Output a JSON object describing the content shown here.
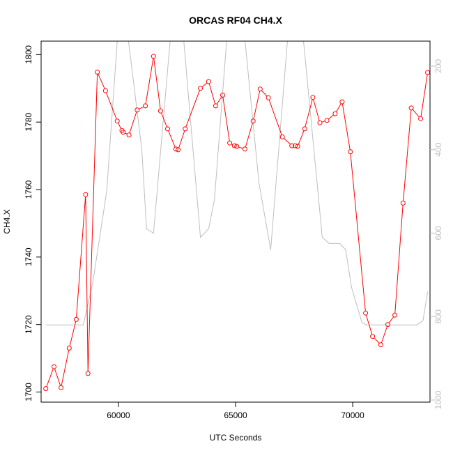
{
  "chart_data": {
    "type": "line",
    "title": "ORCAS RF04 CH4.X",
    "xlabel": "UTC Seconds",
    "ylabel": "CH4.X",
    "xlim": [
      56700,
      73300
    ],
    "ylim": [
      1697,
      1804
    ],
    "x_ticks": [
      60000,
      65000,
      70000
    ],
    "y_ticks": [
      1700,
      1720,
      1740,
      1760,
      1780,
      1800
    ],
    "secondary_axis": {
      "position": "right",
      "reversed": true,
      "ylim": [
        1005,
        140
      ],
      "ticks": [
        200,
        400,
        600,
        800,
        1000
      ],
      "color": "#bebebe"
    },
    "series": [
      {
        "color": "#ff0000",
        "markers": "open-circle",
        "points": [
          [
            56900,
            1701
          ],
          [
            57250,
            1707.5
          ],
          [
            57550,
            1701.3
          ],
          [
            57900,
            1713
          ],
          [
            58200,
            1721.5
          ],
          [
            58600,
            1758.5
          ],
          [
            58700,
            1705.5
          ],
          [
            59100,
            1794.8
          ],
          [
            59450,
            1789.3
          ],
          [
            59950,
            1780.3
          ],
          [
            60150,
            1777.5
          ],
          [
            60200,
            1777
          ],
          [
            60450,
            1776.2
          ],
          [
            60800,
            1783.6
          ],
          [
            61150,
            1784.8
          ],
          [
            61500,
            1799.5
          ],
          [
            61800,
            1783.3
          ],
          [
            62100,
            1778
          ],
          [
            62450,
            1772
          ],
          [
            62550,
            1771.8
          ],
          [
            62850,
            1778
          ],
          [
            63500,
            1790
          ],
          [
            63850,
            1792
          ],
          [
            64150,
            1784.8
          ],
          [
            64450,
            1788
          ],
          [
            64750,
            1773.8
          ],
          [
            64950,
            1773
          ],
          [
            65050,
            1772.8
          ],
          [
            65400,
            1772
          ],
          [
            65750,
            1780.3
          ],
          [
            66050,
            1789.8
          ],
          [
            66400,
            1787.2
          ],
          [
            67000,
            1775.6
          ],
          [
            67400,
            1773
          ],
          [
            67550,
            1773
          ],
          [
            67650,
            1772.8
          ],
          [
            67950,
            1778
          ],
          [
            68300,
            1787.3
          ],
          [
            68600,
            1779.8
          ],
          [
            68900,
            1780.5
          ],
          [
            69250,
            1782.5
          ],
          [
            69550,
            1786
          ],
          [
            69900,
            1771.2
          ],
          [
            70550,
            1723.4
          ],
          [
            70850,
            1716.5
          ],
          [
            71200,
            1714
          ],
          [
            71500,
            1720
          ],
          [
            71800,
            1722.8
          ],
          [
            72150,
            1756
          ],
          [
            72500,
            1784.2
          ],
          [
            72900,
            1781
          ],
          [
            73200,
            1794.7
          ]
        ]
      },
      {
        "color": "#bebebe",
        "axis": "right",
        "markers": "none",
        "points": [
          [
            56900,
            820
          ],
          [
            58500,
            820
          ],
          [
            58900,
            720
          ],
          [
            59500,
            500
          ],
          [
            60000,
            100
          ],
          [
            60300,
            80
          ],
          [
            61000,
            400
          ],
          [
            61200,
            590
          ],
          [
            61500,
            600
          ],
          [
            62300,
            80
          ],
          [
            62700,
            80
          ],
          [
            63500,
            610
          ],
          [
            63850,
            590
          ],
          [
            64100,
            520
          ],
          [
            64700,
            80
          ],
          [
            65300,
            80
          ],
          [
            66000,
            480
          ],
          [
            66500,
            640
          ],
          [
            67300,
            80
          ],
          [
            67800,
            80
          ],
          [
            68700,
            610
          ],
          [
            69000,
            625
          ],
          [
            69450,
            625
          ],
          [
            69700,
            640
          ],
          [
            69950,
            730
          ],
          [
            70400,
            815
          ],
          [
            70600,
            820
          ],
          [
            72750,
            820
          ],
          [
            73000,
            810
          ],
          [
            73200,
            740
          ]
        ]
      }
    ]
  }
}
